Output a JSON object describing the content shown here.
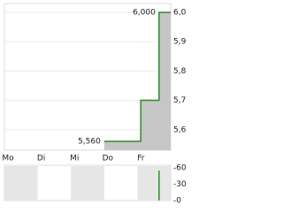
{
  "chart_data": [
    {
      "type": "line",
      "x": [
        3,
        4.1,
        4.1,
        4.65,
        4.65,
        5
      ],
      "values": [
        5.56,
        5.56,
        5.7,
        5.7,
        6.0,
        6.0
      ],
      "value_labels": [
        "5,560",
        null,
        null,
        null,
        "6,000",
        null
      ],
      "color": "#2e8b2e",
      "area_color": "#c6c6c6",
      "xlim": [
        0,
        5
      ],
      "xticks": [
        {
          "value": 0,
          "label": "Mo"
        },
        {
          "value": 1,
          "label": "Di"
        },
        {
          "value": 2,
          "label": "Mi"
        },
        {
          "value": 3,
          "label": "Do"
        },
        {
          "value": 4,
          "label": "Fr"
        }
      ],
      "ylim": [
        5.53,
        6.03
      ],
      "yticks": [
        {
          "value": 5.6,
          "label": "5,6"
        },
        {
          "value": 5.7,
          "label": "5,7"
        },
        {
          "value": 5.8,
          "label": "5,8"
        },
        {
          "value": 5.9,
          "label": "5,9"
        },
        {
          "value": 6.0,
          "label": "6,0"
        }
      ],
      "grid": true
    },
    {
      "type": "bar",
      "x": [
        4.65
      ],
      "values": [
        55
      ],
      "color": "#2e8b2e",
      "xlim": [
        0,
        5
      ],
      "ylim": [
        0,
        65
      ],
      "yticks": [
        {
          "value": 60,
          "label": "-60"
        },
        {
          "value": 30,
          "label": "-30"
        },
        {
          "value": 0,
          "label": "-0"
        }
      ]
    }
  ]
}
